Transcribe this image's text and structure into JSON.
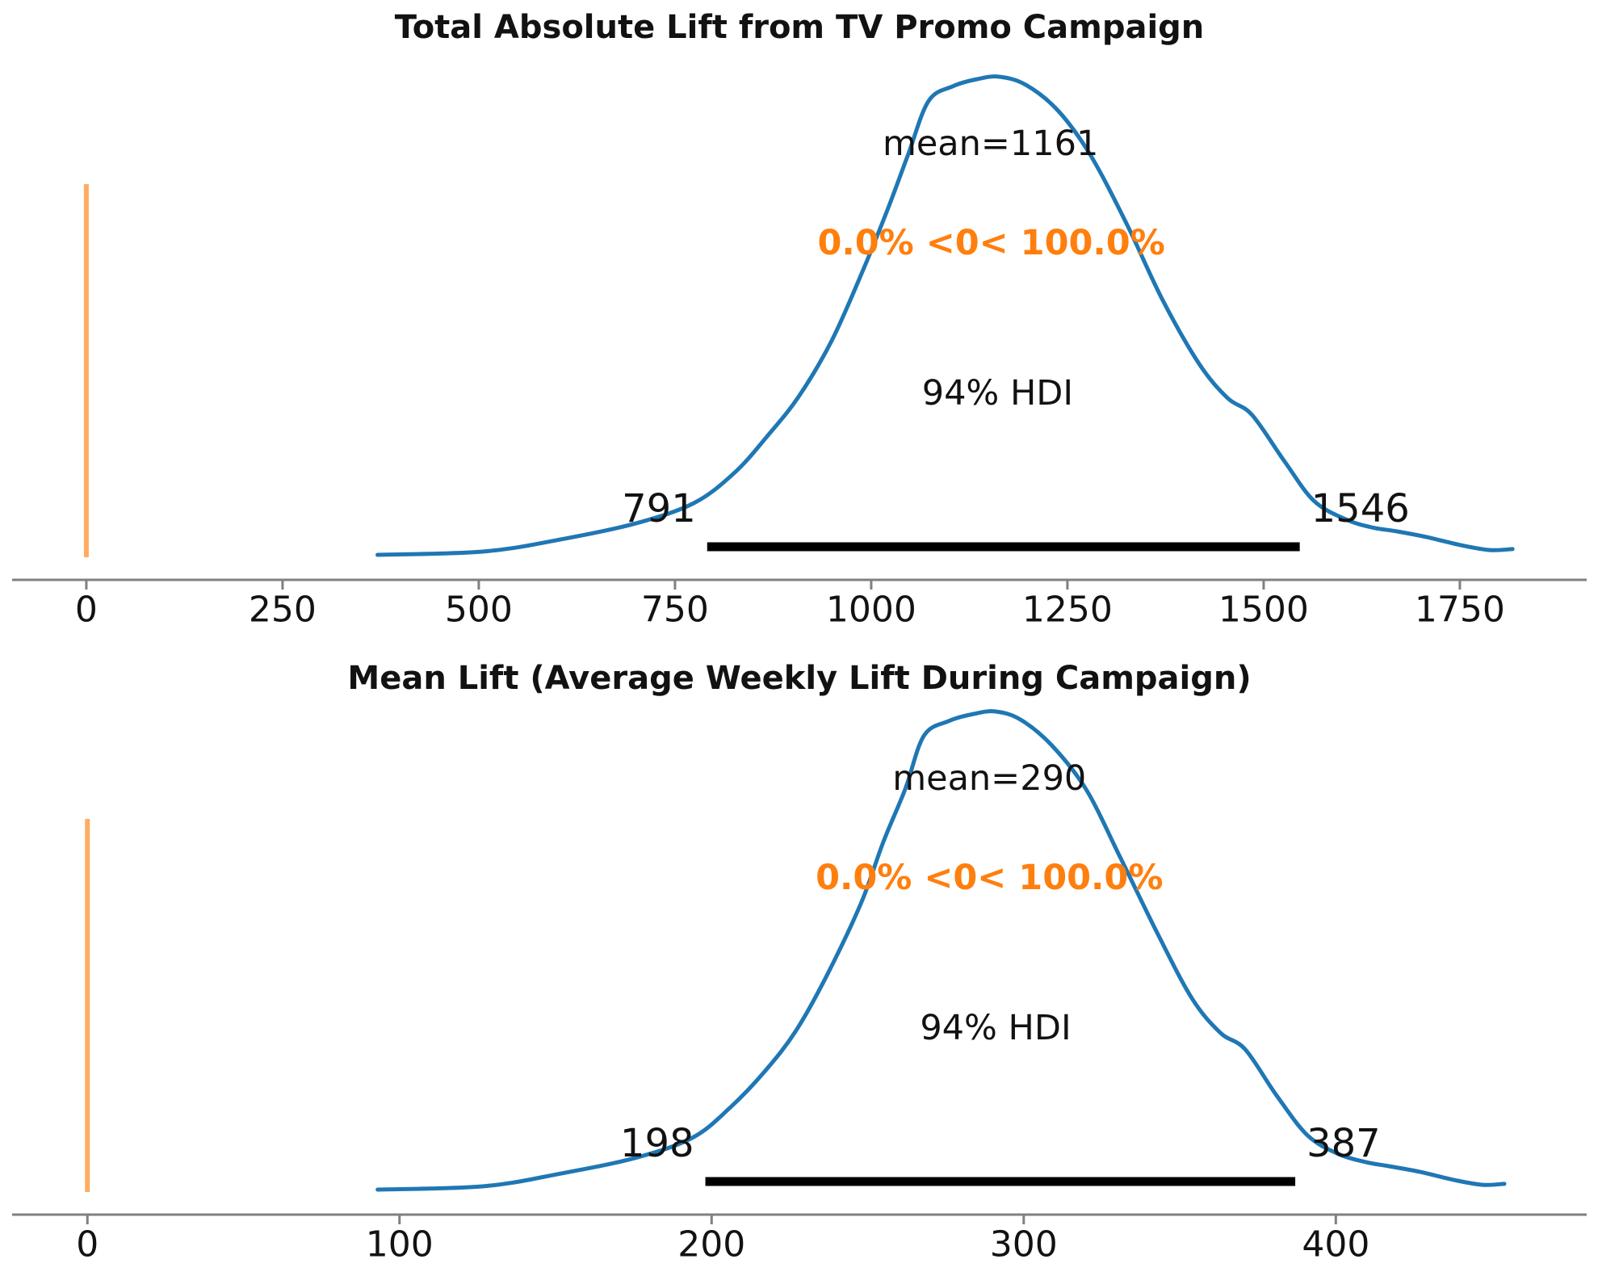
{
  "figure": {
    "background": "#ffffff"
  },
  "colors": {
    "kde_line": "#1f77b4",
    "ref_line": "#ff7f0e",
    "ref_line_alpha": 0.65,
    "ref_text": "#ff7f0e",
    "hdi_bar": "#000000",
    "spine": "#808080",
    "text": "#121212"
  },
  "chart_data": [
    {
      "type": "area",
      "subtype": "kde-posterior",
      "title": "Total Absolute Lift from TV Promo Campaign",
      "mean": 1161,
      "mean_label": "mean=1161",
      "ref_val": 0,
      "ref_val_label": "0.0% <0< 100.0%",
      "hdi_caption": "94% HDI",
      "hdi_lo": 791,
      "hdi_hi": 1546,
      "hdi_lo_label": "791",
      "hdi_hi_label": "1546",
      "xlim": [
        -110,
        1926
      ],
      "grid": false,
      "xticks": {
        "values": [
          0,
          250,
          500,
          750,
          1000,
          1250,
          1500,
          1750
        ],
        "labels": [
          "0",
          "250",
          "500",
          "750",
          "1000",
          "1250",
          "1500",
          "1750"
        ]
      },
      "annotation_x": {
        "mean": 1152,
        "ref": 1153,
        "caption": 1161
      },
      "kde": {
        "x": [
          371,
          507,
          610,
          703,
          775,
          826,
          867,
          908,
          950,
          991,
          1022,
          1047,
          1073,
          1104,
          1135,
          1163,
          1197,
          1238,
          1279,
          1325,
          1371,
          1418,
          1454,
          1485,
          1526,
          1564,
          1605,
          1639,
          1670,
          1708,
          1752,
          1788,
          1817
        ],
        "density": [
          0,
          0.007,
          0.034,
          0.067,
          0.109,
          0.172,
          0.247,
          0.332,
          0.449,
          0.601,
          0.727,
          0.837,
          0.949,
          0.98,
          0.995,
          1,
          0.983,
          0.929,
          0.837,
          0.694,
          0.534,
          0.399,
          0.328,
          0.293,
          0.197,
          0.113,
          0.074,
          0.057,
          0.049,
          0.037,
          0.02,
          0.01,
          0.012
        ]
      }
    },
    {
      "type": "area",
      "subtype": "kde-posterior",
      "title": "Mean Lift (Average Weekly Lift During Campaign)",
      "mean": 290,
      "mean_label": "mean=290",
      "ref_val": 0,
      "ref_val_label": "0.0% <0< 100.0%",
      "hdi_caption": "94% HDI",
      "hdi_lo": 198,
      "hdi_hi": 387,
      "hdi_lo_label": "198",
      "hdi_hi_label": "387",
      "xlim": [
        -28,
        484
      ],
      "grid": false,
      "xticks": {
        "values": [
          0,
          100,
          200,
          300,
          400
        ],
        "labels": [
          "0",
          "100",
          "200",
          "300",
          "400"
        ]
      },
      "annotation_x": {
        "mean": 289,
        "ref": 289,
        "caption": 291
      },
      "kde": {
        "x": [
          93,
          127,
          152,
          176,
          194,
          206,
          217,
          227,
          237,
          248,
          255,
          262,
          268,
          276,
          284,
          291,
          299,
          309,
          320,
          331,
          343,
          354,
          363,
          371,
          381,
          391,
          401,
          410,
          417,
          427,
          438,
          447,
          454
        ],
        "density": [
          0,
          0.007,
          0.034,
          0.067,
          0.109,
          0.172,
          0.247,
          0.332,
          0.449,
          0.601,
          0.727,
          0.837,
          0.949,
          0.98,
          0.995,
          1,
          0.983,
          0.929,
          0.837,
          0.694,
          0.534,
          0.399,
          0.328,
          0.293,
          0.197,
          0.113,
          0.074,
          0.057,
          0.049,
          0.037,
          0.02,
          0.01,
          0.012
        ]
      }
    }
  ]
}
